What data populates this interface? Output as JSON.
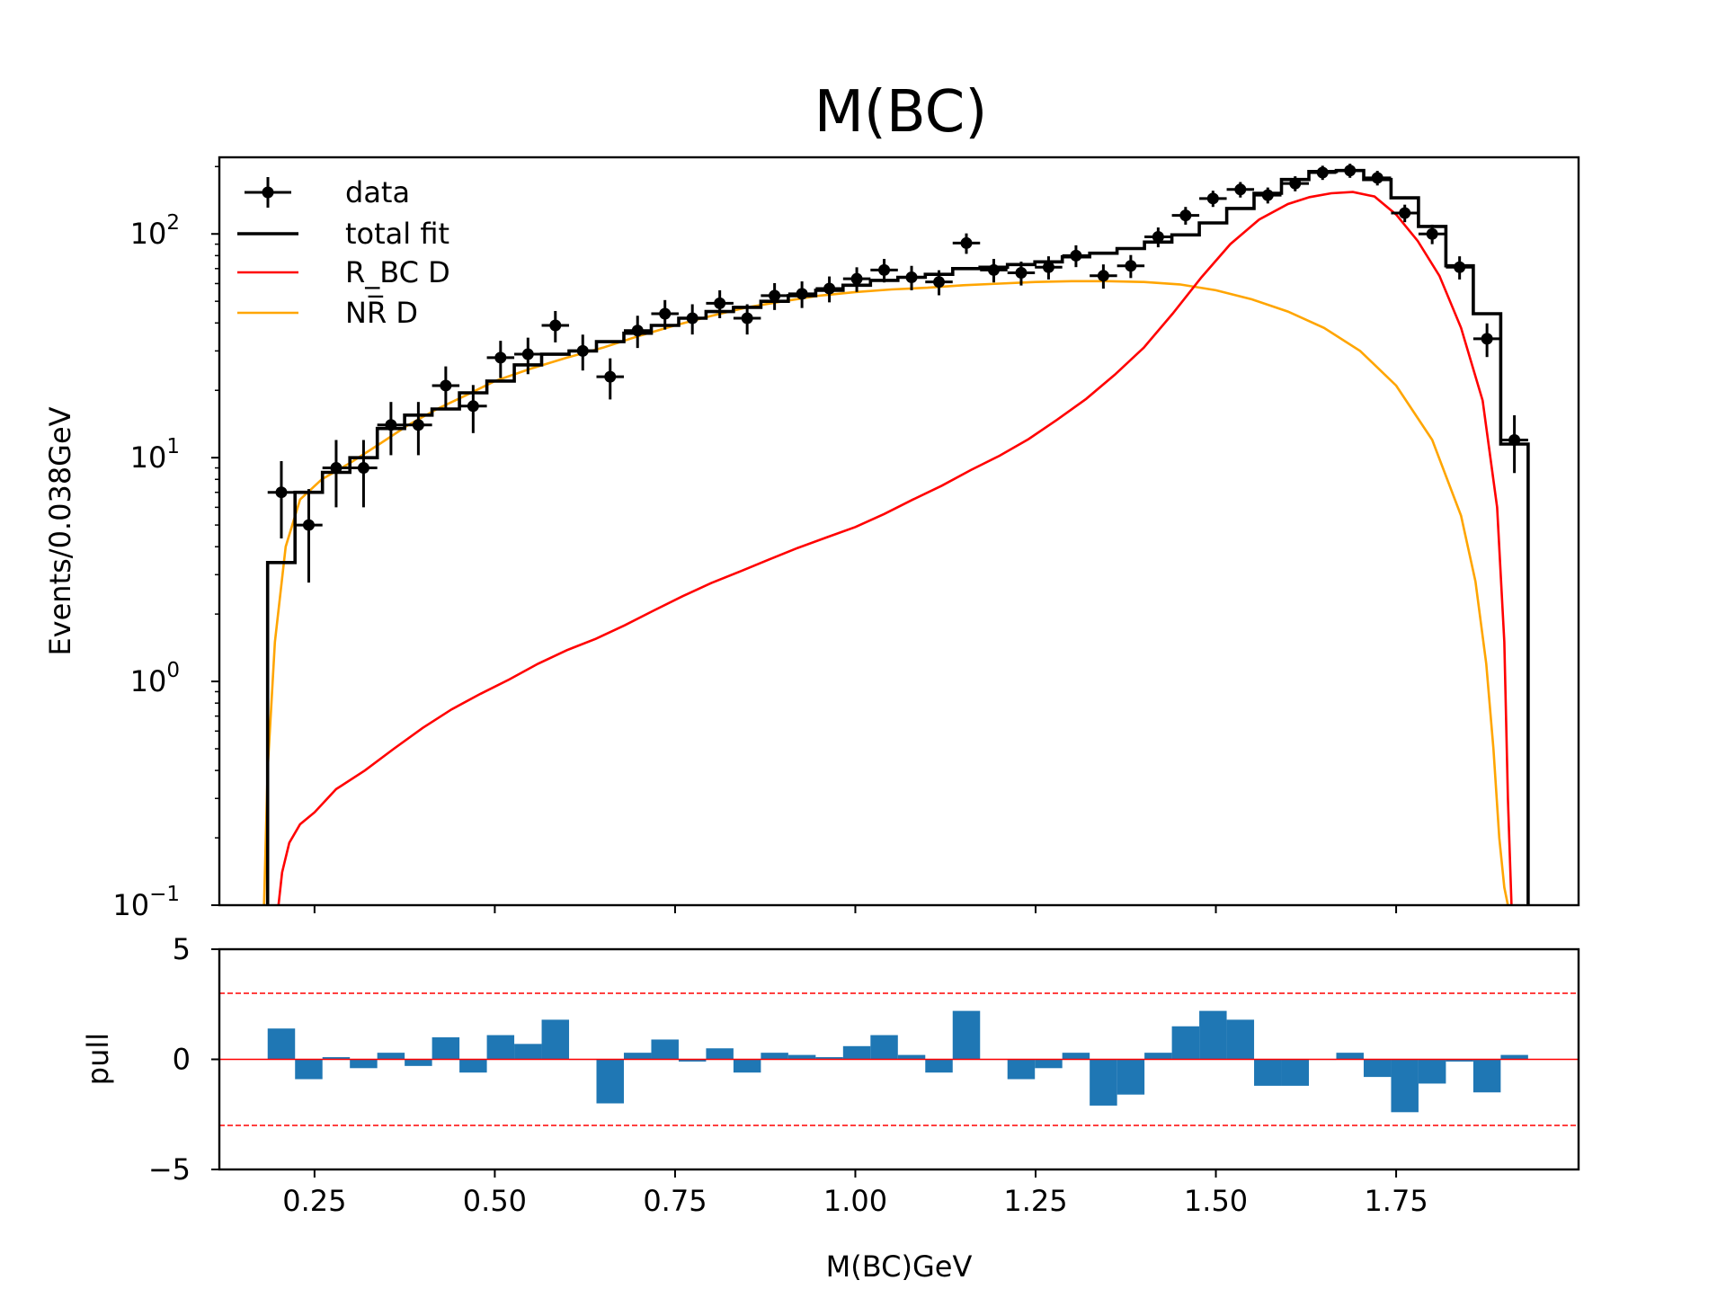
{
  "chart_data": [
    {
      "type": "line",
      "title": "M(BC)",
      "ylabel": "Events/0.038GeV",
      "yscale": "log",
      "ylim": [
        0.1,
        220
      ],
      "xlim": [
        0.118,
        2.003
      ],
      "grid": false,
      "legend_position": "top-left",
      "y_ticks": [
        {
          "value": 0.1,
          "base": "10",
          "exp": "−1"
        },
        {
          "value": 1,
          "base": "10",
          "exp": "0"
        },
        {
          "value": 10,
          "base": "10",
          "exp": "1"
        },
        {
          "value": 100,
          "base": "10",
          "exp": "2"
        }
      ],
      "legend": [
        {
          "key": "data",
          "label": "data"
        },
        {
          "key": "total",
          "label": "total fit"
        },
        {
          "key": "rbc",
          "label": "R_BC D"
        },
        {
          "key": "nr",
          "label": "NR̅ D"
        }
      ],
      "colors": {
        "data": "#000000",
        "total": "#000000",
        "rbc": "#ff0000",
        "nr": "#ffa500"
      },
      "bin_edges": [
        0.185,
        0.223,
        0.261,
        0.299,
        0.337,
        0.375,
        0.413,
        0.451,
        0.489,
        0.527,
        0.565,
        0.603,
        0.641,
        0.679,
        0.717,
        0.755,
        0.793,
        0.831,
        0.869,
        0.907,
        0.945,
        0.983,
        1.021,
        1.059,
        1.097,
        1.135,
        1.173,
        1.211,
        1.249,
        1.287,
        1.325,
        1.363,
        1.401,
        1.439,
        1.477,
        1.515,
        1.553,
        1.591,
        1.629,
        1.667,
        1.705,
        1.743,
        1.781,
        1.819,
        1.857,
        1.895,
        1.933
      ],
      "series": [
        {
          "key": "data",
          "mode": "errorbar",
          "x": [
            0.204,
            0.242,
            0.28,
            0.318,
            0.356,
            0.394,
            0.432,
            0.47,
            0.508,
            0.546,
            0.584,
            0.622,
            0.66,
            0.698,
            0.736,
            0.774,
            0.812,
            0.85,
            0.888,
            0.926,
            0.964,
            1.002,
            1.04,
            1.078,
            1.116,
            1.154,
            1.192,
            1.23,
            1.268,
            1.306,
            1.344,
            1.382,
            1.42,
            1.458,
            1.496,
            1.534,
            1.572,
            1.61,
            1.648,
            1.686,
            1.724,
            1.762,
            1.8,
            1.838,
            1.876,
            1.914
          ],
          "y": [
            7,
            5,
            9,
            9,
            14,
            14,
            21,
            17,
            28,
            29,
            39,
            30,
            23,
            37,
            44,
            42,
            49,
            42,
            53,
            54,
            57,
            63,
            69,
            64,
            61,
            91,
            69,
            67,
            71,
            80,
            65,
            72,
            97,
            121,
            144,
            158,
            149,
            168,
            188,
            192,
            178,
            124,
            100,
            71,
            34,
            12
          ]
        },
        {
          "key": "total",
          "mode": "step",
          "y": [
            3.4,
            7,
            8.6,
            10,
            13.5,
            15.5,
            16.5,
            19.5,
            22,
            26,
            29,
            30,
            33,
            36,
            39,
            42,
            45,
            47,
            50,
            53,
            56,
            59,
            62,
            64,
            66,
            70,
            71,
            73,
            75,
            79,
            82,
            86,
            92,
            99,
            112,
            130,
            152,
            175,
            190,
            192,
            175,
            145,
            108,
            72,
            44,
            11.5
          ]
        },
        {
          "key": "rbc",
          "mode": "curve",
          "x": [
            0.2,
            0.205,
            0.215,
            0.23,
            0.25,
            0.28,
            0.32,
            0.36,
            0.4,
            0.44,
            0.48,
            0.52,
            0.56,
            0.6,
            0.64,
            0.68,
            0.72,
            0.76,
            0.8,
            0.84,
            0.88,
            0.92,
            0.96,
            1.0,
            1.04,
            1.08,
            1.12,
            1.16,
            1.2,
            1.24,
            1.28,
            1.32,
            1.36,
            1.4,
            1.44,
            1.48,
            1.52,
            1.56,
            1.6,
            1.63,
            1.66,
            1.69,
            1.72,
            1.75,
            1.78,
            1.81,
            1.84,
            1.87,
            1.89,
            1.9,
            1.905,
            1.91
          ],
          "y": [
            0.1,
            0.14,
            0.19,
            0.23,
            0.26,
            0.33,
            0.4,
            0.5,
            0.62,
            0.75,
            0.88,
            1.02,
            1.2,
            1.38,
            1.55,
            1.78,
            2.07,
            2.4,
            2.75,
            3.1,
            3.5,
            3.95,
            4.4,
            4.9,
            5.6,
            6.5,
            7.5,
            8.8,
            10.2,
            12.1,
            14.8,
            18.3,
            23.5,
            31,
            44,
            64,
            90,
            116,
            136,
            146,
            152,
            154,
            147,
            122,
            93,
            65,
            38,
            18,
            6,
            1.5,
            0.3,
            0.1
          ]
        },
        {
          "key": "nr",
          "mode": "curve",
          "x": [
            0.18,
            0.185,
            0.195,
            0.21,
            0.23,
            0.26,
            0.3,
            0.34,
            0.38,
            0.42,
            0.46,
            0.5,
            0.55,
            0.6,
            0.65,
            0.7,
            0.75,
            0.8,
            0.85,
            0.9,
            0.95,
            1.0,
            1.05,
            1.1,
            1.15,
            1.2,
            1.25,
            1.3,
            1.35,
            1.4,
            1.45,
            1.5,
            1.55,
            1.6,
            1.65,
            1.7,
            1.75,
            1.8,
            1.84,
            1.86,
            1.875,
            1.885,
            1.893,
            1.9,
            1.905
          ],
          "y": [
            0.1,
            0.4,
            1.5,
            4,
            6.5,
            8,
            9.5,
            11.5,
            14,
            16.5,
            19,
            22,
            25,
            28,
            31,
            35,
            39,
            43,
            47,
            50,
            53,
            55,
            56.5,
            57.5,
            59,
            60,
            61,
            61.5,
            61.5,
            61,
            59.5,
            56,
            51,
            45,
            38,
            30,
            21,
            12,
            5.5,
            2.8,
            1.2,
            0.5,
            0.2,
            0.12,
            0.1
          ]
        }
      ]
    },
    {
      "type": "bar",
      "ylabel": "pull",
      "xlabel": "M(BC)GeV",
      "ylim": [
        -5,
        5
      ],
      "xlim": [
        0.118,
        2.003
      ],
      "y_ticks": [
        "−5",
        "0",
        "5"
      ],
      "x_ticks": [
        "0.25",
        "0.50",
        "0.75",
        "1.00",
        "1.25",
        "1.50",
        "1.75"
      ],
      "bar_color": "#1f77b4",
      "reference_lines": {
        "zero": 0,
        "upper": 3,
        "lower": -3,
        "color": "#ff0000"
      },
      "values": [
        1.4,
        -0.9,
        0.1,
        -0.4,
        0.3,
        -0.3,
        1.0,
        -0.6,
        1.1,
        0.7,
        1.8,
        0.0,
        -2.0,
        0.3,
        0.9,
        -0.1,
        0.5,
        -0.6,
        0.3,
        0.2,
        0.1,
        0.6,
        1.1,
        0.2,
        -0.6,
        2.2,
        0.0,
        -0.9,
        -0.4,
        0.3,
        -2.1,
        -1.6,
        0.3,
        1.5,
        2.2,
        1.8,
        -1.2,
        -1.2,
        0.0,
        0.3,
        -0.8,
        -2.4,
        -1.1,
        -0.1,
        -1.5,
        0.2
      ]
    }
  ]
}
